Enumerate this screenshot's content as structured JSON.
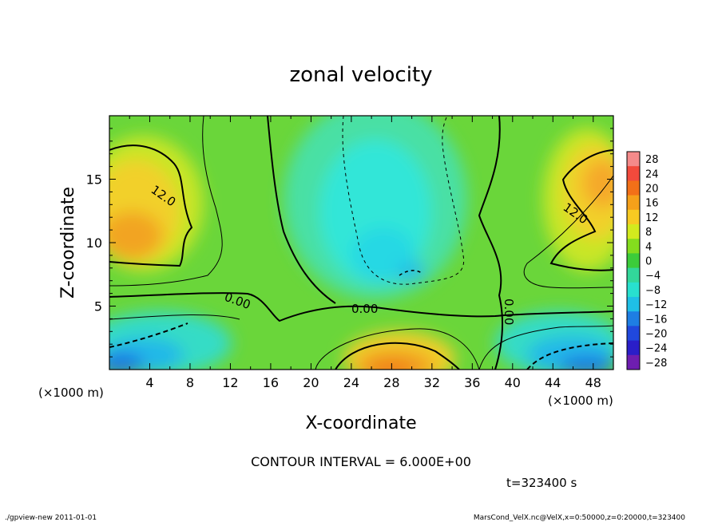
{
  "chart_data": {
    "type": "heatmap",
    "title": "zonal velocity",
    "xlabel": "X-coordinate",
    "ylabel": "Z-coordinate",
    "x_unit": "(×1000 m)",
    "x_unit_right": "(×1000 m)",
    "xlim": [
      0,
      50
    ],
    "ylim": [
      0,
      20
    ],
    "x_ticks": [
      4,
      8,
      12,
      16,
      20,
      24,
      28,
      32,
      36,
      40,
      44,
      48
    ],
    "y_ticks": [
      5,
      10,
      15
    ],
    "colorbar": {
      "labels": [
        "28",
        "24",
        "20",
        "16",
        "12",
        "8",
        "4",
        "0",
        "−4",
        "−8",
        "−12",
        "−16",
        "−20",
        "−24",
        "−28"
      ],
      "colors": [
        "#f48a8a",
        "#f24a3c",
        "#f27018",
        "#f5a01a",
        "#f7ca22",
        "#d3ea1e",
        "#84dc1e",
        "#3ccc3a",
        "#32d79a",
        "#28e0cf",
        "#1fbfe6",
        "#1e7ee3",
        "#2048dc",
        "#2a1ec8",
        "#6e1eb0"
      ]
    },
    "contour_labels": [
      "12.0",
      "12.0",
      "0.00",
      "0.00",
      "0.00"
    ],
    "contour_interval": "CONTOUR INTERVAL = 6.000E+00",
    "time": "t=323400 s",
    "footer_left": "./gpview-new  2011-01-01",
    "footer_right": "MarsCond_VelX.nc@VelX,x=0:50000,z=0:20000,t=323400"
  }
}
